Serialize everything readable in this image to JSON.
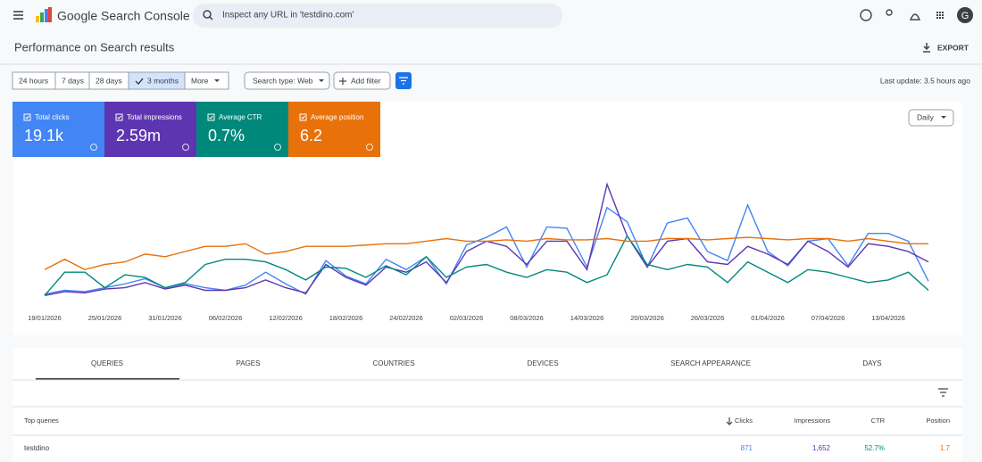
{
  "header": {
    "product": "Google Search Console",
    "search_placeholder": "Inspect any URL in 'testdino.com'",
    "avatar": "G"
  },
  "page_title": "Performance on Search results",
  "export": "EXPORT",
  "filters": {
    "ranges": [
      "24 hours",
      "7 days",
      "28 days",
      "3 months",
      "More"
    ],
    "selected": 3,
    "search_type": "Search type: Web",
    "add_filter": "Add filter",
    "last_update": "Last update: 3.5 hours ago"
  },
  "metrics": [
    {
      "label": "Total clicks",
      "value": "19.1k"
    },
    {
      "label": "Total impressions",
      "value": "2.59m"
    },
    {
      "label": "Average CTR",
      "value": "0.7%"
    },
    {
      "label": "Average position",
      "value": "6.2"
    }
  ],
  "granularity": "Daily",
  "chart_data": {
    "type": "line",
    "categories": [
      "19/01/2026",
      null,
      null,
      "25/01/2026",
      null,
      null,
      "31/01/2026",
      null,
      null,
      "06/02/2026",
      null,
      null,
      "12/02/2026",
      null,
      null,
      "18/02/2026",
      null,
      null,
      "24/02/2026",
      null,
      null,
      "02/03/2026",
      null,
      null,
      "08/03/2026",
      null,
      null,
      "14/03/2026",
      null,
      null,
      "20/03/2026",
      null,
      null,
      "26/03/2026",
      null,
      null,
      "01/04/2026",
      null,
      null,
      "07/04/2026",
      null,
      null,
      "13/04/2026",
      null,
      null
    ],
    "ylim": [
      0,
      100
    ],
    "series": [
      {
        "color": "#4285f4",
        "values": [
          7,
          10,
          9,
          12,
          15,
          19,
          12,
          15,
          12,
          10,
          14,
          24,
          15,
          7,
          33,
          21,
          15,
          34,
          26,
          36,
          15,
          45,
          51,
          59,
          28,
          59,
          58,
          28,
          74,
          63,
          28,
          62,
          66,
          40,
          33,
          76,
          40,
          29,
          48,
          50,
          29,
          54,
          54,
          48,
          17
        ]
      },
      {
        "color": "#5e35b1",
        "values": [
          6,
          9,
          8,
          11,
          12,
          16,
          11,
          14,
          10,
          10,
          12,
          18,
          12,
          8,
          30,
          20,
          14,
          28,
          24,
          32,
          16,
          40,
          48,
          44,
          30,
          48,
          48,
          26,
          92,
          52,
          28,
          48,
          50,
          32,
          30,
          44,
          38,
          30,
          48,
          40,
          28,
          46,
          44,
          40,
          32
        ]
      },
      {
        "color": "#00897b",
        "values": [
          6,
          24,
          24,
          12,
          22,
          20,
          12,
          16,
          30,
          34,
          34,
          32,
          26,
          18,
          28,
          27,
          20,
          29,
          22,
          36,
          20,
          28,
          30,
          24,
          20,
          26,
          24,
          16,
          22,
          52,
          30,
          26,
          30,
          28,
          16,
          32,
          24,
          16,
          26,
          24,
          20,
          16,
          18,
          24,
          10
        ]
      },
      {
        "color": "#e8710a",
        "values": [
          26,
          34,
          26,
          30,
          32,
          38,
          36,
          40,
          44,
          44,
          46,
          38,
          40,
          44,
          44,
          44,
          45,
          46,
          46,
          48,
          50,
          48,
          48,
          49,
          48,
          50,
          49,
          49,
          50,
          48,
          48,
          50,
          50,
          49,
          50,
          51,
          50,
          49,
          50,
          50,
          48,
          50,
          48,
          46,
          46
        ]
      }
    ]
  },
  "tabs": [
    "QUERIES",
    "PAGES",
    "COUNTRIES",
    "DEVICES",
    "SEARCH APPEARANCE",
    "DAYS"
  ],
  "selected_tab": 0,
  "table": {
    "columns": [
      "Top queries",
      "Clicks",
      "Impressions",
      "CTR",
      "Position"
    ],
    "sort_column": 1,
    "rows": [
      [
        "testdino",
        "871",
        "1,652",
        "52.7%",
        "1.7"
      ]
    ]
  }
}
